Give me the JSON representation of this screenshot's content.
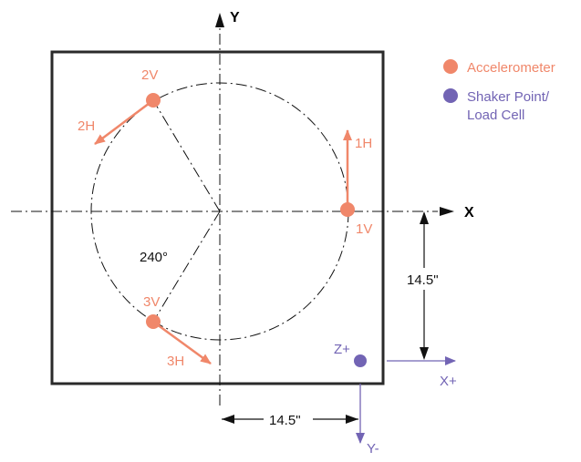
{
  "colors": {
    "accelerometer": "#f0876a",
    "shaker": "#7264b4",
    "frame": "#2a2a2a",
    "line": "#111111"
  },
  "axes": {
    "x_label": "X",
    "y_label": "Y"
  },
  "legend": {
    "accelerometer_label": "Accelerometer",
    "shaker_label_line1": "Shaker Point/",
    "shaker_label_line2": "Load Cell"
  },
  "sensors": {
    "s1_v": "1V",
    "s1_h": "1H",
    "s2_v": "2V",
    "s2_h": "2H",
    "s3_v": "3V",
    "s3_h": "3H"
  },
  "angle_label": "240°",
  "dimensions": {
    "vertical": "14.5\"",
    "horizontal": "14.5\""
  },
  "shaker_axes": {
    "z_label": "Z+",
    "x_label": "X+",
    "y_label": "Y-"
  }
}
